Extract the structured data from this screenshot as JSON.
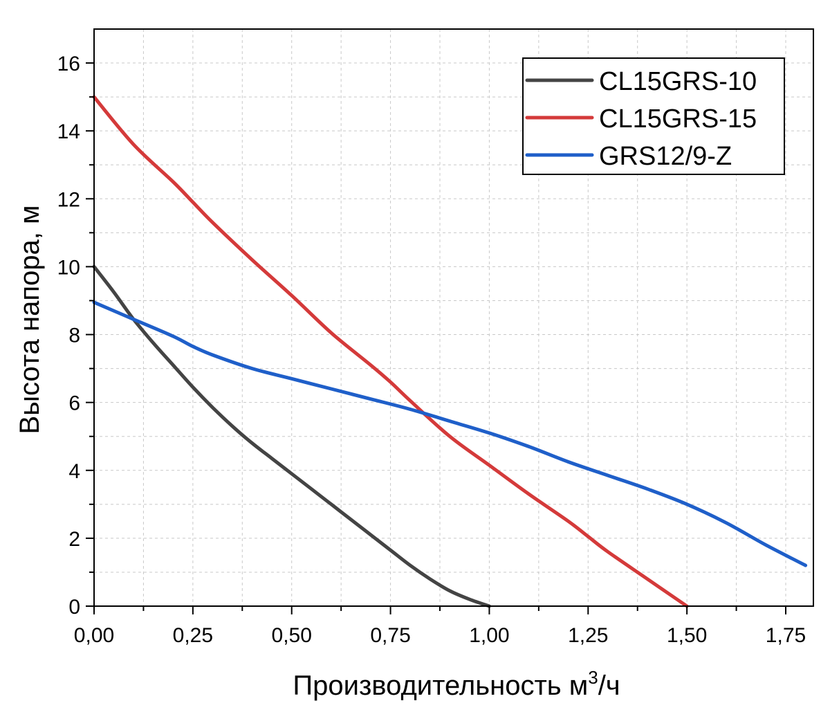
{
  "chart_data": {
    "type": "line",
    "xlabel": "Производительность м",
    "xlabel_sup": "3",
    "xlabel_suffix": "/ч",
    "ylabel": "Высота напора, м",
    "xlim": [
      0,
      1.82
    ],
    "ylim": [
      0,
      17
    ],
    "x_ticks": [
      0,
      0.25,
      0.5,
      0.75,
      1.0,
      1.25,
      1.5,
      1.75
    ],
    "x_tick_labels": [
      "0,00",
      "0,25",
      "0,50",
      "0,75",
      "1,00",
      "1,25",
      "1,50",
      "1,75"
    ],
    "y_ticks": [
      0,
      2,
      4,
      6,
      8,
      10,
      12,
      14,
      16
    ],
    "y_tick_labels": [
      "0",
      "2",
      "4",
      "6",
      "8",
      "10",
      "12",
      "14",
      "16"
    ],
    "grid": true,
    "legend_position": "top-right",
    "series": [
      {
        "name": "CL15GRS-10",
        "color": "#444444",
        "x": [
          0.0,
          0.05,
          0.1,
          0.15,
          0.2,
          0.25,
          0.3,
          0.35,
          0.4,
          0.45,
          0.5,
          0.55,
          0.6,
          0.65,
          0.7,
          0.75,
          0.8,
          0.85,
          0.9,
          0.95,
          1.0
        ],
        "y": [
          10.0,
          9.25,
          8.45,
          7.75,
          7.1,
          6.45,
          5.85,
          5.3,
          4.8,
          4.35,
          3.9,
          3.45,
          3.0,
          2.55,
          2.1,
          1.65,
          1.2,
          0.8,
          0.45,
          0.2,
          0.0
        ]
      },
      {
        "name": "CL15GRS-15",
        "color": "#d43a3a",
        "x": [
          0.0,
          0.1,
          0.2,
          0.25,
          0.3,
          0.4,
          0.5,
          0.6,
          0.7,
          0.75,
          0.8,
          0.9,
          1.0,
          1.1,
          1.2,
          1.25,
          1.3,
          1.4,
          1.5
        ],
        "y": [
          15.0,
          13.6,
          12.5,
          11.9,
          11.3,
          10.2,
          9.15,
          8.05,
          7.1,
          6.6,
          6.05,
          5.0,
          4.15,
          3.3,
          2.5,
          2.05,
          1.6,
          0.8,
          0.0
        ]
      },
      {
        "name": "GRS12/9-Z",
        "color": "#1f5fc9",
        "x": [
          0.0,
          0.1,
          0.2,
          0.25,
          0.3,
          0.4,
          0.5,
          0.6,
          0.7,
          0.8,
          0.9,
          1.0,
          1.1,
          1.2,
          1.3,
          1.4,
          1.5,
          1.6,
          1.7,
          1.8
        ],
        "y": [
          8.95,
          8.45,
          7.95,
          7.65,
          7.4,
          7.0,
          6.7,
          6.4,
          6.1,
          5.8,
          5.45,
          5.1,
          4.7,
          4.25,
          3.85,
          3.45,
          3.0,
          2.45,
          1.8,
          1.2
        ]
      }
    ]
  }
}
